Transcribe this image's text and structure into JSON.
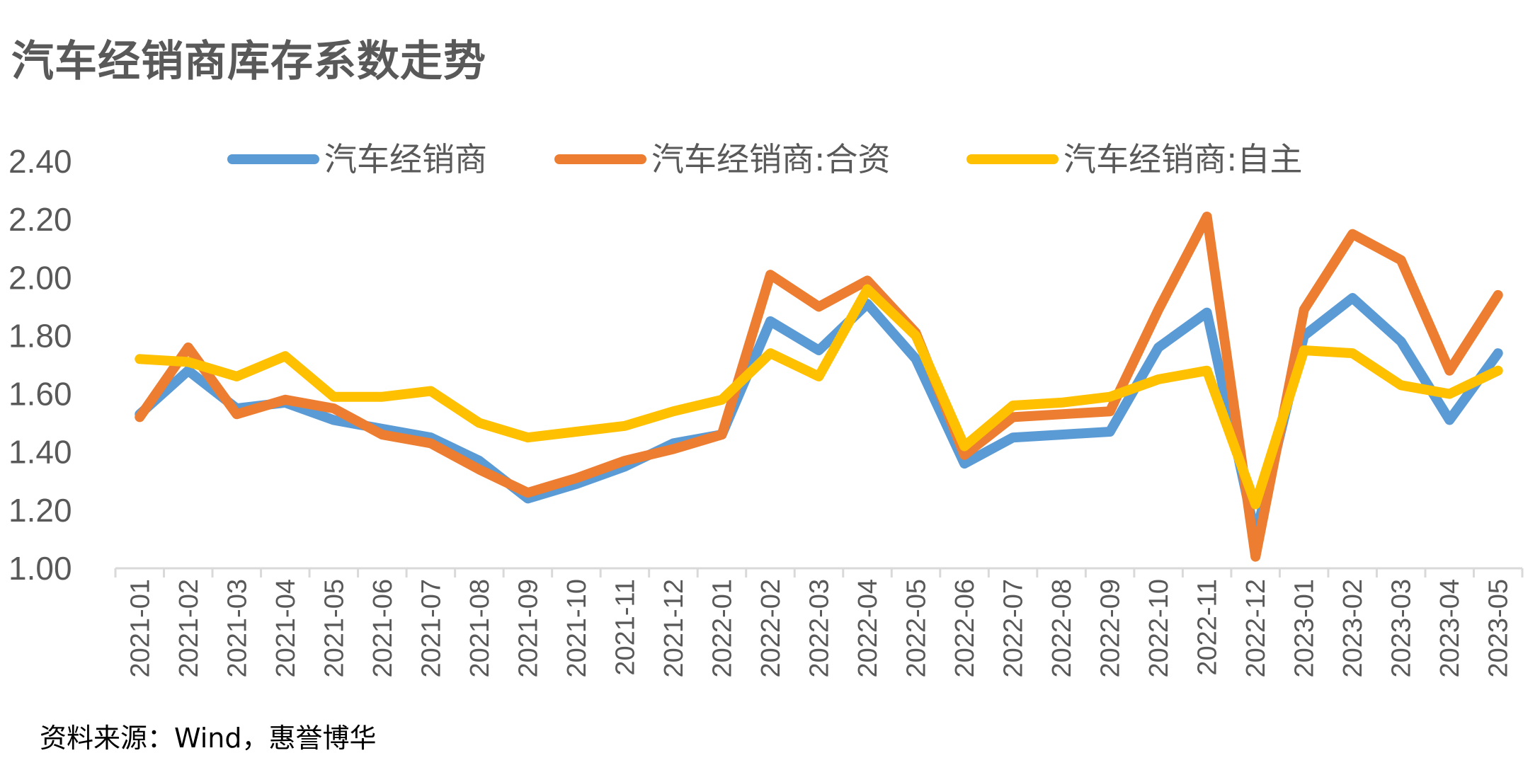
{
  "chart_data": {
    "type": "line",
    "title": "汽车经销商库存系数走势",
    "source": "资料来源：Wind，惠誉博华",
    "xlabel": "",
    "ylabel": "",
    "ylim": [
      1.0,
      2.4
    ],
    "yticks": [
      "1.00",
      "1.20",
      "1.40",
      "1.60",
      "1.80",
      "2.00",
      "2.20",
      "2.40"
    ],
    "grid": false,
    "legend_position": "top",
    "categories": [
      "2021-01",
      "2021-02",
      "2021-03",
      "2021-04",
      "2021-05",
      "2021-06",
      "2021-07",
      "2021-08",
      "2021-09",
      "2021-10",
      "2021-11",
      "2021-12",
      "2022-01",
      "2022-02",
      "2022-03",
      "2022-04",
      "2022-05",
      "2022-06",
      "2022-07",
      "2022-08",
      "2022-09",
      "2022-10",
      "2022-11",
      "2022-12",
      "2023-01",
      "2023-02",
      "2023-03",
      "2023-04",
      "2023-05"
    ],
    "series": [
      {
        "name": "汽车经销商",
        "color": "#5B9BD5",
        "values": [
          1.53,
          1.68,
          1.55,
          1.57,
          1.51,
          1.48,
          1.45,
          1.37,
          1.24,
          1.29,
          1.35,
          1.43,
          1.46,
          1.85,
          1.75,
          1.91,
          1.72,
          1.36,
          1.45,
          1.46,
          1.47,
          1.76,
          1.88,
          1.11,
          1.8,
          1.93,
          1.78,
          1.51,
          1.74
        ]
      },
      {
        "name": "汽车经销商:合资",
        "color": "#ED7D31",
        "values": [
          1.52,
          1.76,
          1.53,
          1.58,
          1.55,
          1.46,
          1.43,
          1.34,
          1.26,
          1.31,
          1.37,
          1.41,
          1.46,
          2.01,
          1.9,
          1.99,
          1.81,
          1.39,
          1.52,
          1.53,
          1.54,
          1.89,
          2.21,
          1.04,
          1.89,
          2.15,
          2.06,
          1.68,
          1.94
        ]
      },
      {
        "name": "汽车经销商:自主",
        "color": "#FFC000",
        "values": [
          1.72,
          1.71,
          1.66,
          1.73,
          1.59,
          1.59,
          1.61,
          1.5,
          1.45,
          1.47,
          1.49,
          1.54,
          1.58,
          1.74,
          1.66,
          1.96,
          1.8,
          1.42,
          1.56,
          1.57,
          1.59,
          1.65,
          1.68,
          1.22,
          1.75,
          1.74,
          1.63,
          1.6,
          1.68
        ]
      }
    ]
  }
}
